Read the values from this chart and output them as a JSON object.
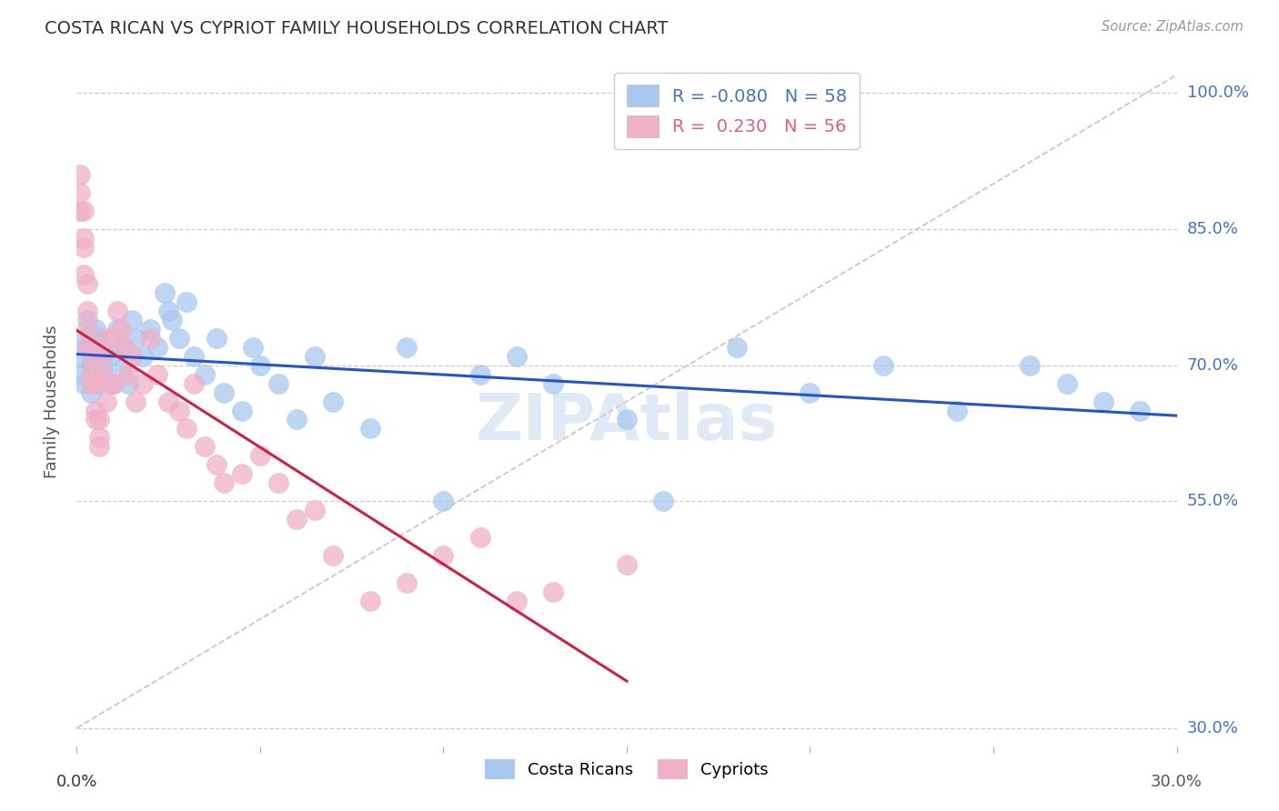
{
  "title": "COSTA RICAN VS CYPRIOT FAMILY HOUSEHOLDS CORRELATION CHART",
  "source": "Source: ZipAtlas.com",
  "ylabel": "Family Households",
  "ytick_vals": [
    0.3,
    0.55,
    0.7,
    0.85,
    1.0
  ],
  "ytick_labels": [
    "30.0%",
    "55.0%",
    "70.0%",
    "85.0%",
    "100.0%"
  ],
  "xlim": [
    0.0,
    0.3
  ],
  "ylim": [
    0.28,
    1.04
  ],
  "legend_blue_R": "-0.080",
  "legend_blue_N": "58",
  "legend_pink_R": "0.230",
  "legend_pink_N": "56",
  "blue_color": "#a8c8f0",
  "pink_color": "#f0b0c8",
  "trend_blue_color": "#2255cc",
  "trend_pink_color": "#cc2244",
  "diag_color": "#ccb8b8",
  "watermark_color": "#c8d8f0",
  "background_color": "#ffffff",
  "grid_color": "#cccccc",
  "right_label_color": "#4472c4",
  "title_color": "#333333",
  "source_color": "#999999",
  "ylabel_color": "#555555",
  "bottom_label_color": "#555555",
  "costa_rican_x": [
    0.001,
    0.001,
    0.002,
    0.002,
    0.003,
    0.003,
    0.004,
    0.004,
    0.005,
    0.005,
    0.006,
    0.006,
    0.007,
    0.007,
    0.008,
    0.009,
    0.01,
    0.011,
    0.012,
    0.013,
    0.014,
    0.015,
    0.016,
    0.018,
    0.02,
    0.022,
    0.024,
    0.025,
    0.026,
    0.028,
    0.03,
    0.032,
    0.035,
    0.038,
    0.04,
    0.045,
    0.048,
    0.05,
    0.055,
    0.06,
    0.065,
    0.07,
    0.08,
    0.09,
    0.1,
    0.11,
    0.12,
    0.13,
    0.15,
    0.16,
    0.18,
    0.2,
    0.22,
    0.24,
    0.26,
    0.27,
    0.28,
    0.29
  ],
  "costa_rican_y": [
    0.71,
    0.69,
    0.73,
    0.68,
    0.72,
    0.75,
    0.7,
    0.67,
    0.71,
    0.74,
    0.73,
    0.68,
    0.7,
    0.72,
    0.69,
    0.71,
    0.68,
    0.74,
    0.72,
    0.7,
    0.68,
    0.75,
    0.73,
    0.71,
    0.74,
    0.72,
    0.78,
    0.76,
    0.75,
    0.73,
    0.77,
    0.71,
    0.69,
    0.73,
    0.67,
    0.65,
    0.72,
    0.7,
    0.68,
    0.64,
    0.71,
    0.66,
    0.63,
    0.72,
    0.55,
    0.69,
    0.71,
    0.68,
    0.64,
    0.55,
    0.72,
    0.67,
    0.7,
    0.65,
    0.7,
    0.68,
    0.66,
    0.65
  ],
  "cypriot_x": [
    0.001,
    0.001,
    0.001,
    0.002,
    0.002,
    0.002,
    0.002,
    0.003,
    0.003,
    0.003,
    0.003,
    0.004,
    0.004,
    0.004,
    0.005,
    0.005,
    0.005,
    0.006,
    0.006,
    0.006,
    0.007,
    0.007,
    0.008,
    0.008,
    0.009,
    0.01,
    0.01,
    0.011,
    0.012,
    0.013,
    0.014,
    0.015,
    0.016,
    0.018,
    0.02,
    0.022,
    0.025,
    0.028,
    0.03,
    0.032,
    0.035,
    0.038,
    0.04,
    0.045,
    0.05,
    0.055,
    0.06,
    0.065,
    0.07,
    0.08,
    0.09,
    0.1,
    0.11,
    0.12,
    0.13,
    0.15
  ],
  "cypriot_y": [
    0.91,
    0.89,
    0.87,
    0.87,
    0.84,
    0.83,
    0.8,
    0.79,
    0.76,
    0.74,
    0.72,
    0.71,
    0.69,
    0.68,
    0.68,
    0.65,
    0.64,
    0.64,
    0.62,
    0.61,
    0.71,
    0.69,
    0.73,
    0.66,
    0.68,
    0.73,
    0.68,
    0.76,
    0.74,
    0.72,
    0.69,
    0.71,
    0.66,
    0.68,
    0.73,
    0.69,
    0.66,
    0.65,
    0.63,
    0.68,
    0.61,
    0.59,
    0.57,
    0.58,
    0.6,
    0.57,
    0.53,
    0.54,
    0.49,
    0.44,
    0.46,
    0.49,
    0.51,
    0.44,
    0.45,
    0.48
  ]
}
